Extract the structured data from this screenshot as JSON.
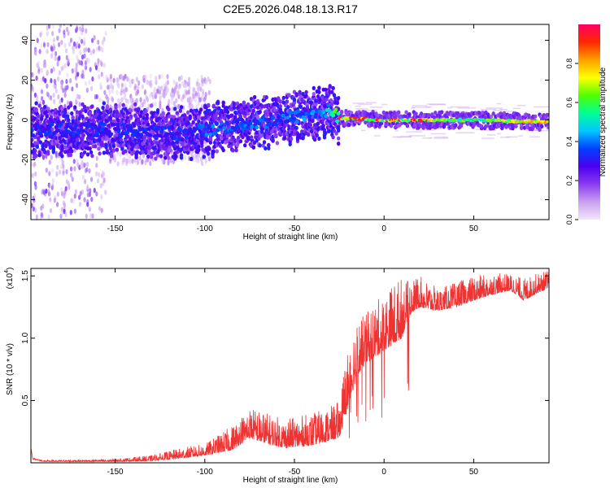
{
  "figure_title": "C2E5.2026.048.18.13.R17",
  "chart_data": [
    {
      "type": "heatmap",
      "title": "C2E5.2026.048.18.13.R17",
      "xlabel": "Height of straight line (km)",
      "ylabel": "Frequency (Hz)",
      "xlim": [
        -197,
        92
      ],
      "ylim": [
        -50,
        48
      ],
      "x_ticks": [
        -150,
        -100,
        -50,
        0,
        50
      ],
      "y_ticks": [
        -40,
        -20,
        0,
        20,
        40
      ],
      "colorbar": {
        "label": "Normalized spectral amplitude",
        "range": [
          0,
          1
        ],
        "ticks": [
          "0.0",
          "0.2",
          "0.4",
          "0.6",
          "0.8"
        ],
        "stops": [
          "#f2e6fa",
          "#c9a0f0",
          "#8a3cf0",
          "#4b00f0",
          "#0040ff",
          "#00c8ff",
          "#00ff96",
          "#50ff00",
          "#ffff00",
          "#ffa000",
          "#ff2800",
          "#ff0064"
        ]
      },
      "ridge": {
        "x": [
          -197,
          -150,
          -110,
          -100,
          -60,
          -40,
          -30,
          -25,
          0,
          50,
          92
        ],
        "center_hz": [
          -5,
          -5,
          -7,
          -5,
          0,
          3,
          5,
          1,
          0,
          0,
          -1
        ],
        "peak_amplitude": [
          0.35,
          0.35,
          0.35,
          0.4,
          0.4,
          0.45,
          0.5,
          0.75,
          0.95,
          0.6,
          0.9
        ]
      }
    },
    {
      "type": "line",
      "xlabel": "Height of straight line (km)",
      "ylabel": "SNR (10 * v/v)",
      "y_multiplier": "(x10",
      "y_multiplier_exp": "4",
      "y_multiplier_close": ")",
      "xlim": [
        -197,
        92
      ],
      "ylim": [
        0,
        1.56
      ],
      "x_ticks": [
        -150,
        -100,
        -50,
        0,
        50
      ],
      "y_ticks": [
        "0.5",
        "1.0",
        "1.5"
      ],
      "series": [
        {
          "name": "SNR",
          "color": "#ee3333",
          "envelope": {
            "x": [
              -197,
              -196,
              -190,
              -150,
              -130,
              -110,
              -100,
              -85,
              -75,
              -65,
              -55,
              -40,
              -30,
              -25,
              -22,
              -18,
              -15,
              -10,
              -5,
              0,
              5,
              10,
              12,
              15,
              20,
              25,
              30,
              40,
              50,
              60,
              70,
              74,
              78,
              85,
              92
            ],
            "base": [
              0.12,
              0.03,
              0.01,
              0.01,
              0.015,
              0.04,
              0.06,
              0.1,
              0.2,
              0.15,
              0.12,
              0.14,
              0.18,
              0.2,
              0.35,
              0.55,
              0.7,
              0.8,
              0.85,
              0.9,
              0.95,
              1.0,
              1.1,
              1.2,
              1.25,
              1.23,
              1.22,
              1.25,
              1.3,
              1.35,
              1.38,
              1.35,
              1.3,
              1.36,
              1.4
            ],
            "peak": [
              0.12,
              0.04,
              0.02,
              0.03,
              0.06,
              0.13,
              0.15,
              0.3,
              0.45,
              0.4,
              0.35,
              0.4,
              0.45,
              0.5,
              0.8,
              1.1,
              1.15,
              1.2,
              1.3,
              1.35,
              1.45,
              1.5,
              1.45,
              1.48,
              1.5,
              1.45,
              1.4,
              1.45,
              1.5,
              1.52,
              1.52,
              1.5,
              1.48,
              1.52,
              1.55
            ]
          }
        }
      ]
    }
  ]
}
